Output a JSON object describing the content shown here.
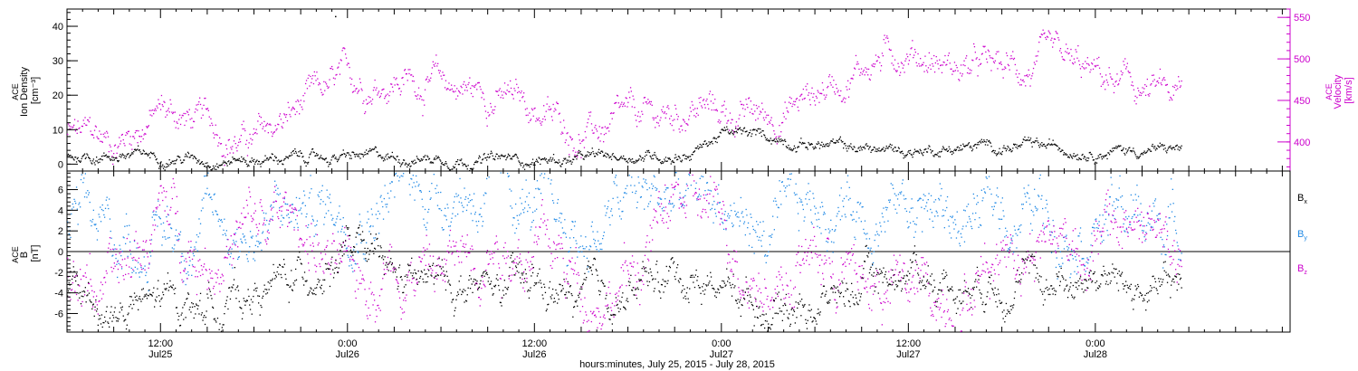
{
  "chart_data": [
    {
      "type": "scatter",
      "panel": "density-velocity",
      "y_axis_left": {
        "label": [
          "ACE",
          "Ion Density",
          "[cm⁻³]"
        ],
        "ticks": [
          0,
          10,
          20,
          30,
          40
        ],
        "range": [
          -2,
          45
        ]
      },
      "y_axis_right": {
        "label": [
          "ACE",
          "Velocity",
          "[km/s]"
        ],
        "ticks": [
          400,
          450,
          500,
          550
        ],
        "range": [
          365,
          560
        ],
        "color": "#cc00cc"
      },
      "series": [
        {
          "axis": "left",
          "color": "#000000",
          "x": [
            0,
            3,
            6,
            9,
            12,
            15,
            18,
            21,
            24,
            27,
            30,
            33,
            36,
            39,
            40,
            42,
            45,
            48,
            51,
            54,
            57,
            60,
            63,
            66,
            69,
            71.5
          ],
          "y": [
            2.5,
            2.8,
            2.5,
            1.8,
            1.5,
            2.0,
            2.0,
            2.2,
            2.0,
            1.5,
            1.3,
            1.5,
            2.5,
            3.0,
            3.3,
            9.0,
            8.0,
            6.0,
            4.5,
            4.0,
            5.0,
            5.2,
            4.8,
            4.5,
            4.2,
            4.5
          ]
        },
        {
          "axis": "right",
          "color": "#cc00cc",
          "x": [
            0,
            3,
            6,
            9,
            12,
            15,
            18,
            21,
            24,
            27,
            30,
            33,
            36,
            39,
            40,
            42,
            45,
            48,
            51,
            54,
            57,
            60,
            63,
            66,
            69,
            71.5
          ],
          "y": [
            410,
            400,
            440,
            420,
            400,
            440,
            470,
            480,
            470,
            460,
            440,
            410,
            420,
            430,
            445,
            435,
            430,
            460,
            495,
            515,
            490,
            485,
            490,
            475,
            460,
            450
          ]
        }
      ],
      "outliers": [
        {
          "x": 17.2,
          "y": 43
        }
      ]
    },
    {
      "type": "scatter",
      "panel": "magnetic-field",
      "y_axis_left": {
        "label": [
          "ACE",
          "B",
          "[nT]"
        ],
        "ticks": [
          -6,
          -4,
          -2,
          0,
          2,
          4,
          6
        ],
        "range": [
          -7.8,
          7.8
        ]
      },
      "zero_line": true,
      "legend_position": "right",
      "series": [
        {
          "name": "Bx",
          "legend": {
            "base": "B",
            "sub": "x"
          },
          "color": "#000000",
          "x": [
            0,
            3,
            6,
            9,
            12,
            15,
            18,
            21,
            24,
            27,
            30,
            33,
            36,
            39,
            42,
            45,
            48,
            51,
            54,
            57,
            60,
            63,
            66,
            69,
            71.5
          ],
          "y": [
            -4,
            -6,
            -5,
            -5,
            -4,
            -2.5,
            0.5,
            -3,
            -3,
            -4,
            -3.5,
            -5,
            -4,
            -2,
            -3,
            -5,
            -5,
            -3,
            -1.5,
            -3,
            -2,
            -3,
            -2,
            -4,
            -4
          ]
        },
        {
          "name": "By",
          "legend": {
            "base": "B",
            "sub": "y"
          },
          "color": "#1e88e5",
          "x": [
            0,
            3,
            6,
            9,
            12,
            15,
            18,
            21,
            24,
            27,
            30,
            33,
            36,
            39,
            42,
            45,
            48,
            51,
            54,
            57,
            60,
            63,
            66,
            69,
            71.5
          ],
          "y": [
            3,
            1,
            2,
            3,
            2,
            4,
            5,
            6,
            6.5,
            6,
            4,
            1,
            5,
            5,
            5,
            1,
            4,
            5,
            5,
            3,
            4,
            4,
            4,
            3,
            3
          ]
        },
        {
          "name": "Bz",
          "legend": {
            "base": "B",
            "sub": "z"
          },
          "color": "#cc00cc",
          "x": [
            0,
            3,
            6,
            9,
            12,
            15,
            18,
            21,
            24,
            27,
            30,
            33,
            36,
            39,
            42,
            45,
            48,
            51,
            54,
            57,
            60,
            63,
            66,
            69,
            71.5
          ],
          "y": [
            -2,
            -4,
            4,
            0,
            2,
            3,
            -4,
            0,
            -2,
            2,
            1,
            -3,
            -3,
            5,
            3,
            -3,
            0,
            -3,
            -4,
            -4,
            1,
            2,
            1,
            3,
            -1
          ]
        }
      ]
    }
  ],
  "x_axis": {
    "unit": "hours from Jul 25 06:00",
    "range": [
      0,
      78.5
    ],
    "major_ticks": [
      {
        "x": 6,
        "time": "12:00",
        "date": "Jul25"
      },
      {
        "x": 18,
        "time": "0:00",
        "date": "Jul26"
      },
      {
        "x": 30,
        "time": "12:00",
        "date": "Jul26"
      },
      {
        "x": 42,
        "time": "0:00",
        "date": "Jul27"
      },
      {
        "x": 54,
        "time": "12:00",
        "date": "Jul27"
      },
      {
        "x": 66,
        "time": "0:00",
        "date": "Jul28"
      }
    ],
    "label": "hours:minutes, July 25, 2015 - July 28, 2015"
  }
}
